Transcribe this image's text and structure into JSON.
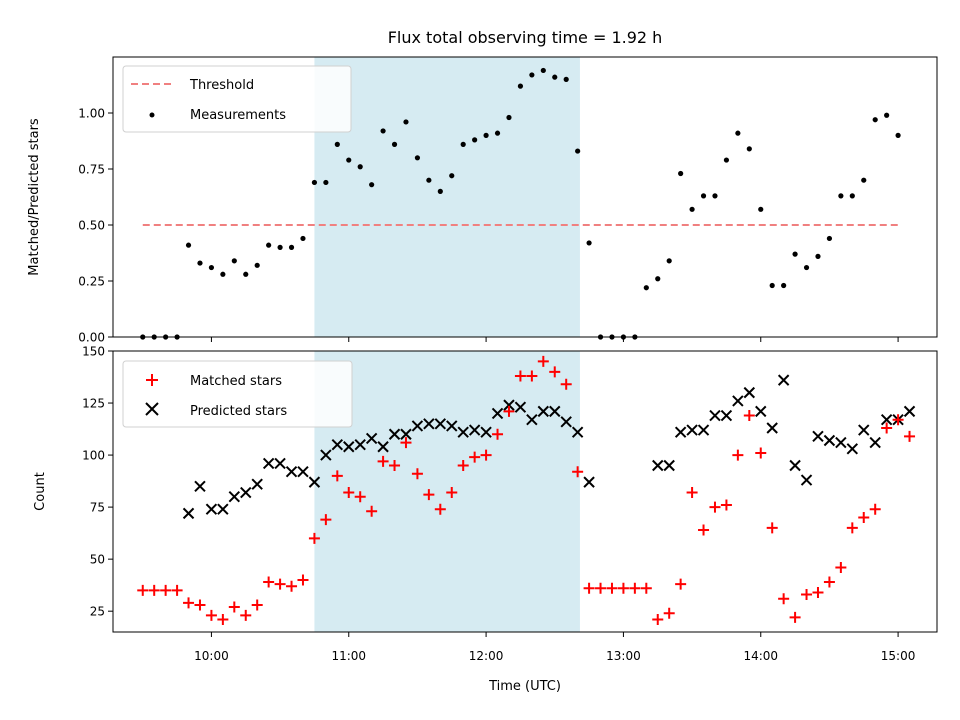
{
  "figure": {
    "title": "Flux total observing time = 1.92 h",
    "xlabel": "Time (UTC)"
  },
  "colors": {
    "threshold": "#f08080",
    "measurements": "#000000",
    "matched": "#ff0000",
    "predicted": "#000000",
    "shade": "#add8e6"
  },
  "chart_data": [
    {
      "type": "scatter",
      "title": "Flux total observing time = 1.92 h",
      "xlabel": "",
      "ylabel": "Matched/Predicted stars",
      "xlim": [
        "09:17",
        "15:17"
      ],
      "ylim": [
        0.0,
        1.25
      ],
      "xticks": [
        "10:00",
        "11:00",
        "12:00",
        "13:00",
        "14:00",
        "15:00"
      ],
      "yticks": [
        0.0,
        0.25,
        0.5,
        0.75,
        1.0
      ],
      "ytick_labels": [
        "0.00",
        "0.25",
        "0.50",
        "0.75",
        "1.00"
      ],
      "grid": false,
      "legend": {
        "location": "top-left",
        "entries": [
          "Threshold",
          "Measurements"
        ]
      },
      "shaded_region": {
        "x": [
          "10:45",
          "12:41"
        ]
      },
      "threshold": {
        "name": "Threshold",
        "y": 0.5,
        "x": [
          "09:30",
          "15:00"
        ],
        "style": "dashed"
      },
      "series": [
        {
          "name": "Measurements",
          "marker": "dot",
          "points": [
            [
              "09:30",
              0.0
            ],
            [
              "09:35",
              0.0
            ],
            [
              "09:40",
              0.0
            ],
            [
              "09:45",
              0.0
            ],
            [
              "09:50",
              0.41
            ],
            [
              "09:55",
              0.33
            ],
            [
              "10:00",
              0.31
            ],
            [
              "10:05",
              0.28
            ],
            [
              "10:10",
              0.34
            ],
            [
              "10:15",
              0.28
            ],
            [
              "10:20",
              0.32
            ],
            [
              "10:25",
              0.41
            ],
            [
              "10:30",
              0.4
            ],
            [
              "10:35",
              0.4
            ],
            [
              "10:40",
              0.44
            ],
            [
              "10:45",
              0.69
            ],
            [
              "10:50",
              0.69
            ],
            [
              "10:55",
              0.86
            ],
            [
              "11:00",
              0.79
            ],
            [
              "11:05",
              0.76
            ],
            [
              "11:10",
              0.68
            ],
            [
              "11:15",
              0.92
            ],
            [
              "11:20",
              0.86
            ],
            [
              "11:25",
              0.96
            ],
            [
              "11:30",
              0.8
            ],
            [
              "11:35",
              0.7
            ],
            [
              "11:40",
              0.65
            ],
            [
              "11:45",
              0.72
            ],
            [
              "11:50",
              0.86
            ],
            [
              "11:55",
              0.88
            ],
            [
              "12:00",
              0.9
            ],
            [
              "12:05",
              0.91
            ],
            [
              "12:10",
              0.98
            ],
            [
              "12:15",
              1.12
            ],
            [
              "12:20",
              1.17
            ],
            [
              "12:25",
              1.19
            ],
            [
              "12:30",
              1.16
            ],
            [
              "12:35",
              1.15
            ],
            [
              "12:40",
              0.83
            ],
            [
              "12:45",
              0.42
            ],
            [
              "12:50",
              0.0
            ],
            [
              "12:55",
              0.0
            ],
            [
              "13:00",
              0.0
            ],
            [
              "13:05",
              0.0
            ],
            [
              "13:10",
              0.22
            ],
            [
              "13:15",
              0.26
            ],
            [
              "13:20",
              0.34
            ],
            [
              "13:25",
              0.73
            ],
            [
              "13:30",
              0.57
            ],
            [
              "13:35",
              0.63
            ],
            [
              "13:40",
              0.63
            ],
            [
              "13:45",
              0.79
            ],
            [
              "13:50",
              0.91
            ],
            [
              "13:55",
              0.84
            ],
            [
              "14:00",
              0.57
            ],
            [
              "14:05",
              0.23
            ],
            [
              "14:10",
              0.23
            ],
            [
              "14:15",
              0.37
            ],
            [
              "14:20",
              0.31
            ],
            [
              "14:25",
              0.36
            ],
            [
              "14:30",
              0.44
            ],
            [
              "14:35",
              0.63
            ],
            [
              "14:40",
              0.63
            ],
            [
              "14:45",
              0.7
            ],
            [
              "14:50",
              0.97
            ],
            [
              "14:55",
              0.99
            ],
            [
              "15:00",
              0.9
            ]
          ]
        }
      ]
    },
    {
      "type": "scatter",
      "xlabel": "Time (UTC)",
      "ylabel": "Count",
      "xlim": [
        "09:17",
        "15:17"
      ],
      "ylim": [
        15,
        150
      ],
      "xticks": [
        "10:00",
        "11:00",
        "12:00",
        "13:00",
        "14:00",
        "15:00"
      ],
      "yticks": [
        25,
        50,
        75,
        100,
        125,
        150
      ],
      "ytick_labels": [
        "25",
        "50",
        "75",
        "100",
        "125",
        "150"
      ],
      "grid": false,
      "legend": {
        "location": "top-left",
        "entries": [
          "Matched stars",
          "Predicted stars"
        ]
      },
      "shaded_region": {
        "x": [
          "10:45",
          "12:41"
        ]
      },
      "series": [
        {
          "name": "Matched stars",
          "marker": "plus",
          "points": [
            [
              "09:30",
              35
            ],
            [
              "09:35",
              35
            ],
            [
              "09:40",
              35
            ],
            [
              "09:45",
              35
            ],
            [
              "09:50",
              29
            ],
            [
              "09:55",
              28
            ],
            [
              "10:00",
              23
            ],
            [
              "10:05",
              21
            ],
            [
              "10:10",
              27
            ],
            [
              "10:15",
              23
            ],
            [
              "10:20",
              28
            ],
            [
              "10:25",
              39
            ],
            [
              "10:30",
              38
            ],
            [
              "10:35",
              37
            ],
            [
              "10:40",
              40
            ],
            [
              "10:45",
              60
            ],
            [
              "10:50",
              69
            ],
            [
              "10:55",
              90
            ],
            [
              "11:00",
              82
            ],
            [
              "11:05",
              80
            ],
            [
              "11:10",
              73
            ],
            [
              "11:15",
              97
            ],
            [
              "11:20",
              95
            ],
            [
              "11:25",
              106
            ],
            [
              "11:30",
              91
            ],
            [
              "11:35",
              81
            ],
            [
              "11:40",
              74
            ],
            [
              "11:45",
              82
            ],
            [
              "11:50",
              95
            ],
            [
              "11:55",
              99
            ],
            [
              "12:00",
              100
            ],
            [
              "12:05",
              110
            ],
            [
              "12:10",
              121
            ],
            [
              "12:15",
              138
            ],
            [
              "12:20",
              138
            ],
            [
              "12:25",
              145
            ],
            [
              "12:30",
              140
            ],
            [
              "12:35",
              134
            ],
            [
              "12:40",
              92
            ],
            [
              "12:45",
              36
            ],
            [
              "12:50",
              36
            ],
            [
              "12:55",
              36
            ],
            [
              "13:00",
              36
            ],
            [
              "13:05",
              36
            ],
            [
              "13:10",
              36
            ],
            [
              "13:15",
              21
            ],
            [
              "13:20",
              24
            ],
            [
              "13:25",
              38
            ],
            [
              "13:30",
              82
            ],
            [
              "13:35",
              64
            ],
            [
              "13:40",
              75
            ],
            [
              "13:45",
              76
            ],
            [
              "13:50",
              100
            ],
            [
              "13:55",
              119
            ],
            [
              "14:00",
              101
            ],
            [
              "14:05",
              65
            ],
            [
              "14:10",
              31
            ],
            [
              "14:15",
              22
            ],
            [
              "14:20",
              33
            ],
            [
              "14:25",
              34
            ],
            [
              "14:30",
              39
            ],
            [
              "14:35",
              46
            ],
            [
              "14:40",
              65
            ],
            [
              "14:45",
              70
            ],
            [
              "14:50",
              74
            ],
            [
              "14:55",
              113
            ],
            [
              "15:00",
              117
            ],
            [
              "15:05",
              109
            ]
          ]
        },
        {
          "name": "Predicted stars",
          "marker": "x",
          "points": [
            [
              "09:50",
              72
            ],
            [
              "09:55",
              85
            ],
            [
              "10:00",
              74
            ],
            [
              "10:05",
              74
            ],
            [
              "10:10",
              80
            ],
            [
              "10:15",
              82
            ],
            [
              "10:20",
              86
            ],
            [
              "10:25",
              96
            ],
            [
              "10:30",
              96
            ],
            [
              "10:35",
              92
            ],
            [
              "10:40",
              92
            ],
            [
              "10:45",
              87
            ],
            [
              "10:50",
              100
            ],
            [
              "10:55",
              105
            ],
            [
              "11:00",
              104
            ],
            [
              "11:05",
              105
            ],
            [
              "11:10",
              108
            ],
            [
              "11:15",
              104
            ],
            [
              "11:20",
              110
            ],
            [
              "11:25",
              110
            ],
            [
              "11:30",
              114
            ],
            [
              "11:35",
              115
            ],
            [
              "11:40",
              115
            ],
            [
              "11:45",
              114
            ],
            [
              "11:50",
              111
            ],
            [
              "11:55",
              112
            ],
            [
              "12:00",
              111
            ],
            [
              "12:05",
              120
            ],
            [
              "12:10",
              124
            ],
            [
              "12:15",
              123
            ],
            [
              "12:20",
              117
            ],
            [
              "12:25",
              121
            ],
            [
              "12:30",
              121
            ],
            [
              "12:35",
              116
            ],
            [
              "12:40",
              111
            ],
            [
              "12:45",
              87
            ],
            [
              "13:15",
              95
            ],
            [
              "13:20",
              95
            ],
            [
              "13:25",
              111
            ],
            [
              "13:30",
              112
            ],
            [
              "13:35",
              112
            ],
            [
              "13:40",
              119
            ],
            [
              "13:45",
              119
            ],
            [
              "13:50",
              126
            ],
            [
              "13:55",
              130
            ],
            [
              "14:00",
              121
            ],
            [
              "14:05",
              113
            ],
            [
              "14:10",
              136
            ],
            [
              "14:15",
              95
            ],
            [
              "14:20",
              88
            ],
            [
              "14:25",
              109
            ],
            [
              "14:30",
              107
            ],
            [
              "14:35",
              106
            ],
            [
              "14:40",
              103
            ],
            [
              "14:45",
              112
            ],
            [
              "14:50",
              106
            ],
            [
              "14:55",
              117
            ],
            [
              "15:00",
              117
            ],
            [
              "15:05",
              121
            ]
          ]
        }
      ]
    }
  ]
}
